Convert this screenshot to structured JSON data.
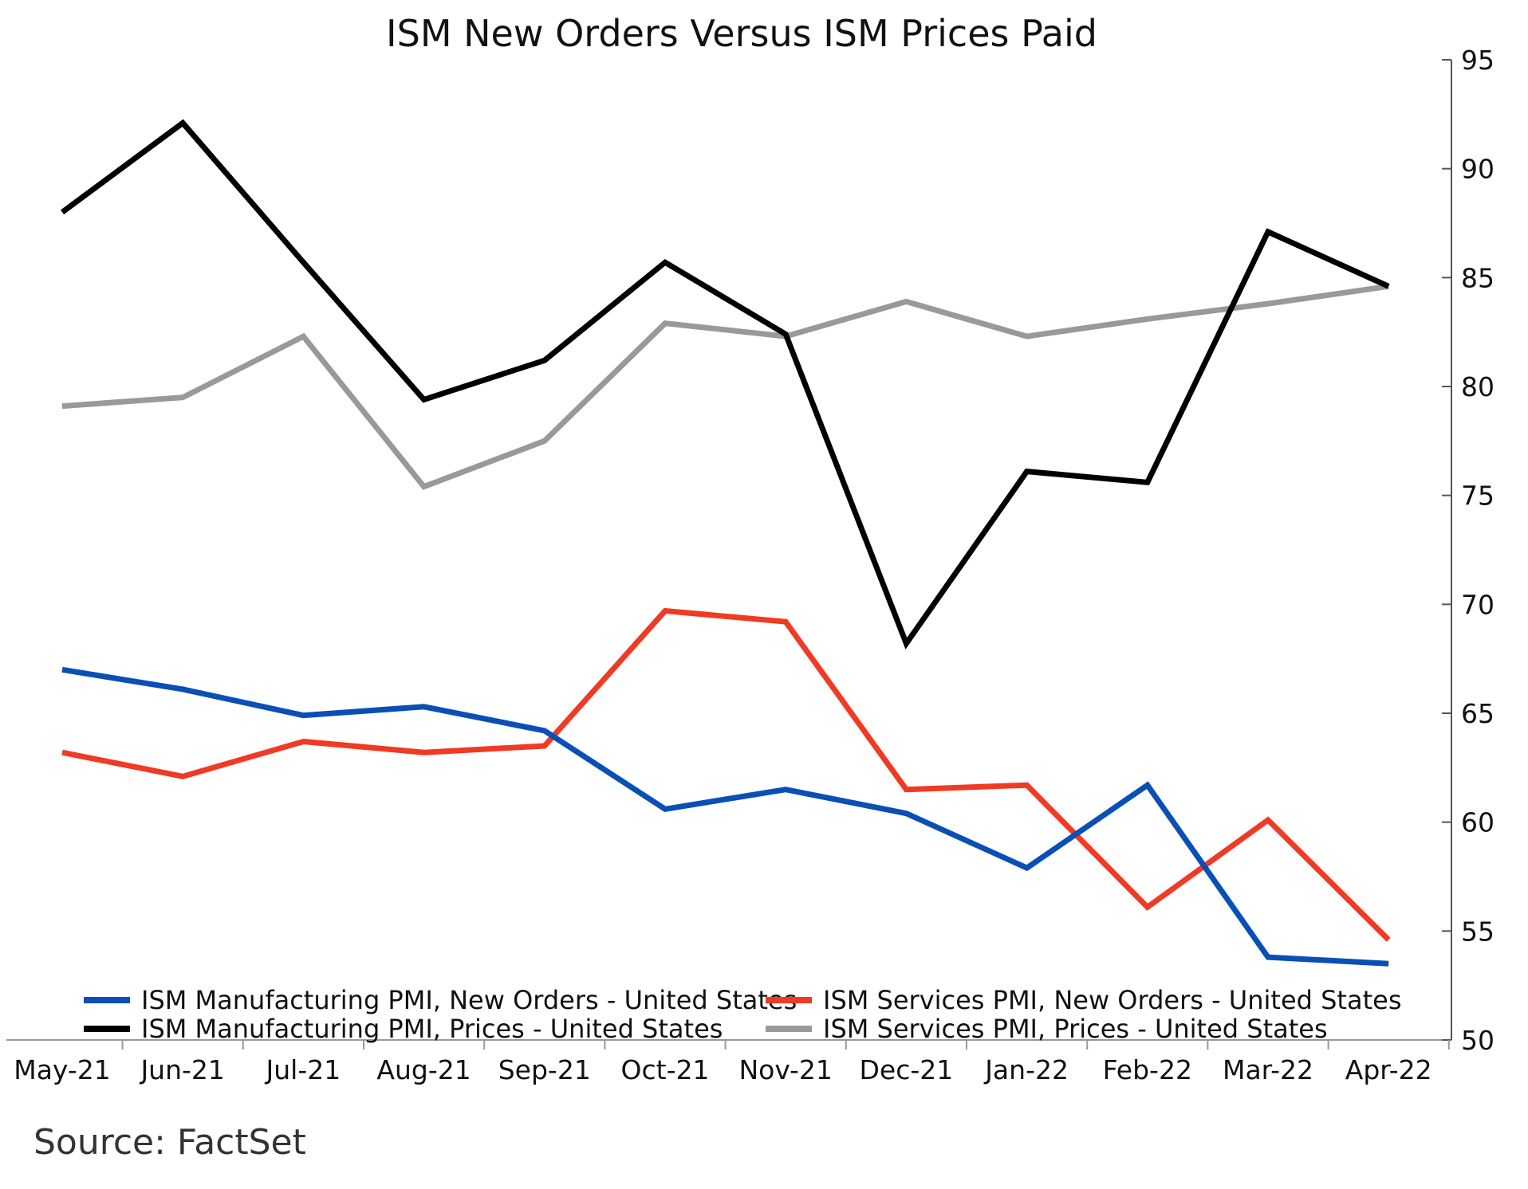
{
  "chart_data": {
    "type": "line",
    "title": "ISM New Orders Versus ISM Prices Paid",
    "categories": [
      "May-21",
      "Jun-21",
      "Jul-21",
      "Aug-21",
      "Sep-21",
      "Oct-21",
      "Nov-21",
      "Dec-21",
      "Jan-22",
      "Feb-22",
      "Mar-22",
      "Apr-22"
    ],
    "ylim": [
      50,
      95
    ],
    "yticks": [
      50,
      55,
      60,
      65,
      70,
      75,
      80,
      85,
      90,
      95
    ],
    "y_axis_side": "right",
    "grid": false,
    "legend_position": "bottom",
    "series": [
      {
        "name": "ISM Manufacturing PMI, New Orders - United States",
        "color": "#0a4fb5",
        "values": [
          67.0,
          66.1,
          64.9,
          65.3,
          64.2,
          60.6,
          61.5,
          60.4,
          57.9,
          61.7,
          53.8,
          53.5
        ]
      },
      {
        "name": "ISM Services PMI, New Orders - United States",
        "color": "#f03a24",
        "values": [
          63.2,
          62.1,
          63.7,
          63.2,
          63.5,
          69.7,
          69.2,
          61.5,
          61.7,
          56.1,
          60.1,
          54.6
        ]
      },
      {
        "name": "ISM Manufacturing PMI, Prices - United States",
        "color": "#000000",
        "values": [
          88.0,
          92.1,
          85.7,
          79.4,
          81.2,
          85.7,
          82.4,
          68.2,
          76.1,
          75.6,
          87.1,
          84.6
        ]
      },
      {
        "name": "ISM Services PMI, Prices - United States",
        "color": "#999999",
        "values": [
          79.1,
          79.5,
          82.3,
          75.4,
          77.5,
          82.9,
          82.3,
          83.9,
          82.3,
          83.1,
          83.8,
          84.6
        ]
      }
    ]
  },
  "source": "Source: FactSet"
}
